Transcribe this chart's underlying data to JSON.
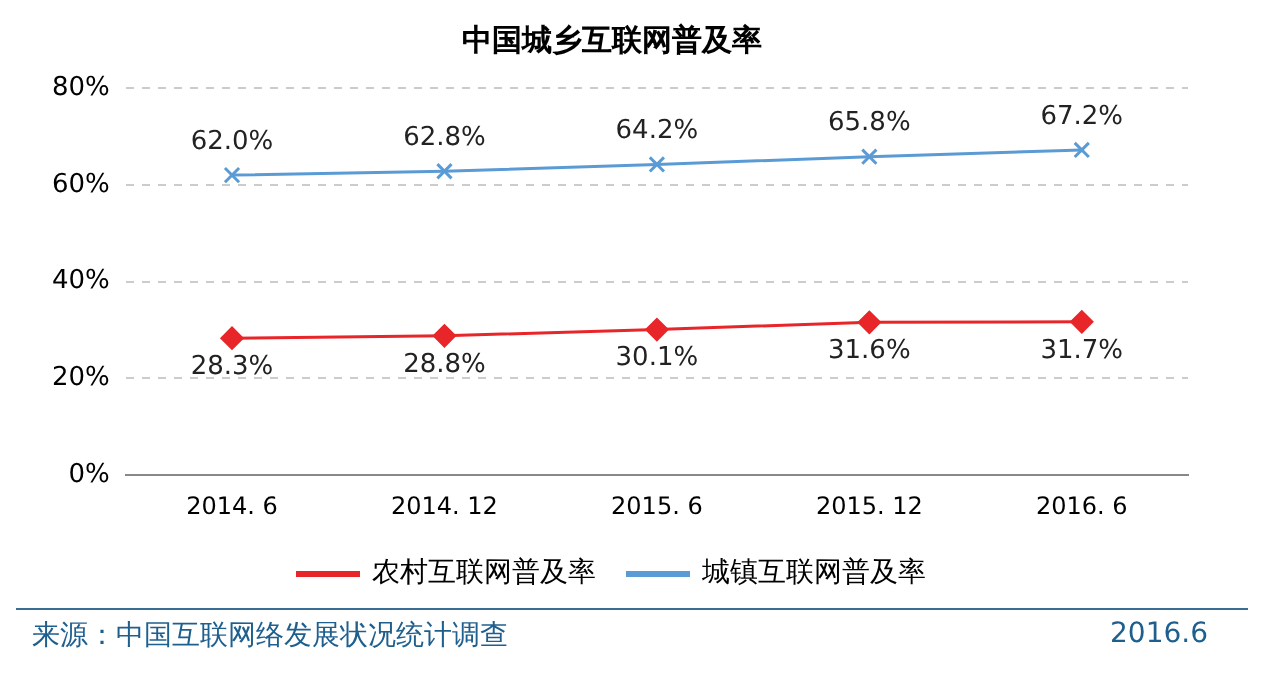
{
  "chart_data": {
    "type": "line",
    "title": "中国城乡互联网普及率",
    "categories": [
      "2014. 6",
      "2014. 12",
      "2015. 6",
      "2015. 12",
      "2016. 6"
    ],
    "series": [
      {
        "name": "农村互联网普及率",
        "color": "#e8262a",
        "marker": "diamond",
        "values": [
          28.3,
          28.8,
          30.1,
          31.6,
          31.7
        ],
        "value_labels": [
          "28.3%",
          "28.8%",
          "30.1%",
          "31.6%",
          "31.7%"
        ]
      },
      {
        "name": "城镇互联网普及率",
        "color": "#5b9bd5",
        "marker": "cross",
        "values": [
          62.0,
          62.8,
          64.2,
          65.8,
          67.2
        ],
        "value_labels": [
          "62.0%",
          "62.8%",
          "64.2%",
          "65.8%",
          "67.2%"
        ]
      }
    ],
    "ylim": [
      0,
      80
    ],
    "yticks": [
      {
        "value": 0,
        "label": "0%"
      },
      {
        "value": 20,
        "label": "20%"
      },
      {
        "value": 40,
        "label": "40%"
      },
      {
        "value": 60,
        "label": "60%"
      },
      {
        "value": 80,
        "label": "80%"
      }
    ],
    "grid": "y",
    "legend": "bottom",
    "line_style": "solid",
    "annotations": [
      "来源：中国互联网络发展状况统计调查",
      "2016.6"
    ]
  }
}
